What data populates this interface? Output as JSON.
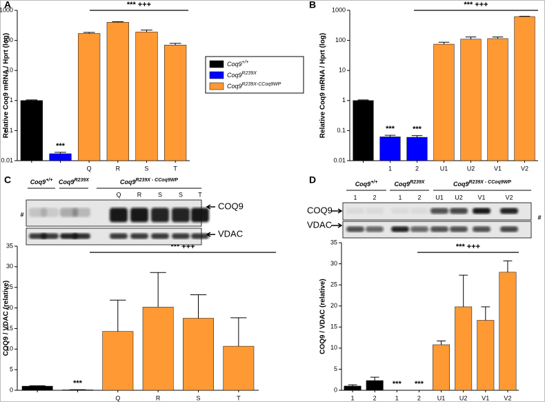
{
  "chart_data": [
    {
      "type": "bar",
      "label": "A",
      "y_label": "Relative Coq9 mRNA / Hprt (log)",
      "log": true,
      "ylim": [
        0.01,
        1000
      ],
      "yticks": [
        0.01,
        0.1,
        1,
        10,
        100,
        1000
      ],
      "categories": [
        null,
        null,
        "Q",
        "R",
        "S",
        "T"
      ],
      "values": [
        1,
        0.017,
        170,
        400,
        190,
        70
      ],
      "errors": [
        0.05,
        0.002,
        15,
        20,
        30,
        10
      ],
      "colors": [
        "#000000",
        "#0000ff",
        "#ff9933",
        "#ff9933",
        "#ff9933",
        "#ff9933"
      ],
      "bar_labels": [
        null,
        "***",
        null,
        null,
        null,
        null
      ],
      "bracket_label": "***  +++",
      "legend": [
        {
          "name": "Coq9",
          "sup": "+/+",
          "color": "#000000"
        },
        {
          "name": "Coq9",
          "sup": "R239X",
          "color": "#0000ff"
        },
        {
          "name": "Coq9",
          "sup": "R239X-CCoq9WP",
          "color": "#ff9933"
        }
      ]
    },
    {
      "type": "bar",
      "label": "B",
      "y_label": "Relative Coq9 mRNA / Hprt (log)",
      "log": true,
      "ylim": [
        0.01,
        1000
      ],
      "yticks": [
        0.01,
        0.1,
        1,
        10,
        100,
        1000
      ],
      "categories": [
        null,
        "1",
        "2",
        "U1",
        "U2",
        "V1",
        "V2"
      ],
      "values": [
        1,
        0.062,
        0.06,
        75,
        110,
        115,
        620
      ],
      "errors": [
        0.05,
        0.008,
        0.008,
        12,
        20,
        15,
        15
      ],
      "colors": [
        "#000000",
        "#0000ff",
        "#0000ff",
        "#ff9933",
        "#ff9933",
        "#ff9933",
        "#ff9933"
      ],
      "bar_labels": [
        null,
        "***",
        "***",
        null,
        null,
        null,
        null
      ],
      "bracket_label": "***  +++"
    },
    {
      "type": "bar",
      "label": "C",
      "y_label": "COQ9 / VDAC (relative)",
      "log": false,
      "ylim": [
        0,
        35
      ],
      "yticks": [
        0,
        5,
        10,
        15,
        20,
        25,
        30,
        35
      ],
      "categories": [
        null,
        null,
        "Q",
        "R",
        "S",
        "T"
      ],
      "values": [
        1.0,
        0.1,
        14.3,
        20.2,
        17.5,
        10.7
      ],
      "errors": [
        0.1,
        0.05,
        7.6,
        8.4,
        5.7,
        6.9
      ],
      "colors": [
        "#000000",
        "#0000ff",
        "#ff9933",
        "#ff9933",
        "#ff9933",
        "#ff9933"
      ],
      "bar_labels": [
        null,
        "***",
        null,
        null,
        null,
        null
      ],
      "bracket_label": "***  +++",
      "blot": {
        "groups": [
          {
            "name": "Coq9",
            "sup": "+/+"
          },
          {
            "name": "Coq9",
            "sup": "R239X"
          },
          {
            "name": "Coq9",
            "sup": "R239X - CCoq9WP"
          }
        ],
        "lanes": [
          "Q",
          "R",
          "S",
          "S",
          "T"
        ],
        "bands": [
          "COQ9",
          "VDAC"
        ],
        "marker": "#"
      }
    },
    {
      "type": "bar",
      "label": "D",
      "y_label": "COQ9 / VDAC (relative)",
      "log": false,
      "ylim": [
        0,
        35
      ],
      "yticks": [
        0,
        5,
        10,
        15,
        20,
        25,
        30,
        35
      ],
      "categories": [
        "1",
        "2",
        "1",
        "2",
        "U1",
        "U2",
        "V1",
        "V2"
      ],
      "values": [
        1.0,
        2.3,
        0,
        0,
        10.8,
        19.8,
        16.6,
        28.0
      ],
      "errors": [
        0.3,
        0.8,
        0,
        0,
        0.9,
        7.5,
        3.2,
        2.7
      ],
      "colors": [
        "#000000",
        "#000000",
        "#0000ff",
        "#0000ff",
        "#ff9933",
        "#ff9933",
        "#ff9933",
        "#ff9933"
      ],
      "bar_labels": [
        null,
        null,
        "***",
        "***",
        null,
        null,
        null,
        null
      ],
      "bracket_label": "***  +++",
      "blot": {
        "groups": [
          {
            "name": "Coq9",
            "sup": "+/+"
          },
          {
            "name": "Coq9",
            "sup": "R239X"
          },
          {
            "name": "Coq9",
            "sup": "R239X - CCoq9WP"
          }
        ],
        "lanes": [
          "1",
          "2",
          "1",
          "2",
          "U1",
          "U2",
          "V1",
          "V2"
        ],
        "bands": [
          "COQ9",
          "VDAC"
        ],
        "marker": "#"
      }
    }
  ]
}
